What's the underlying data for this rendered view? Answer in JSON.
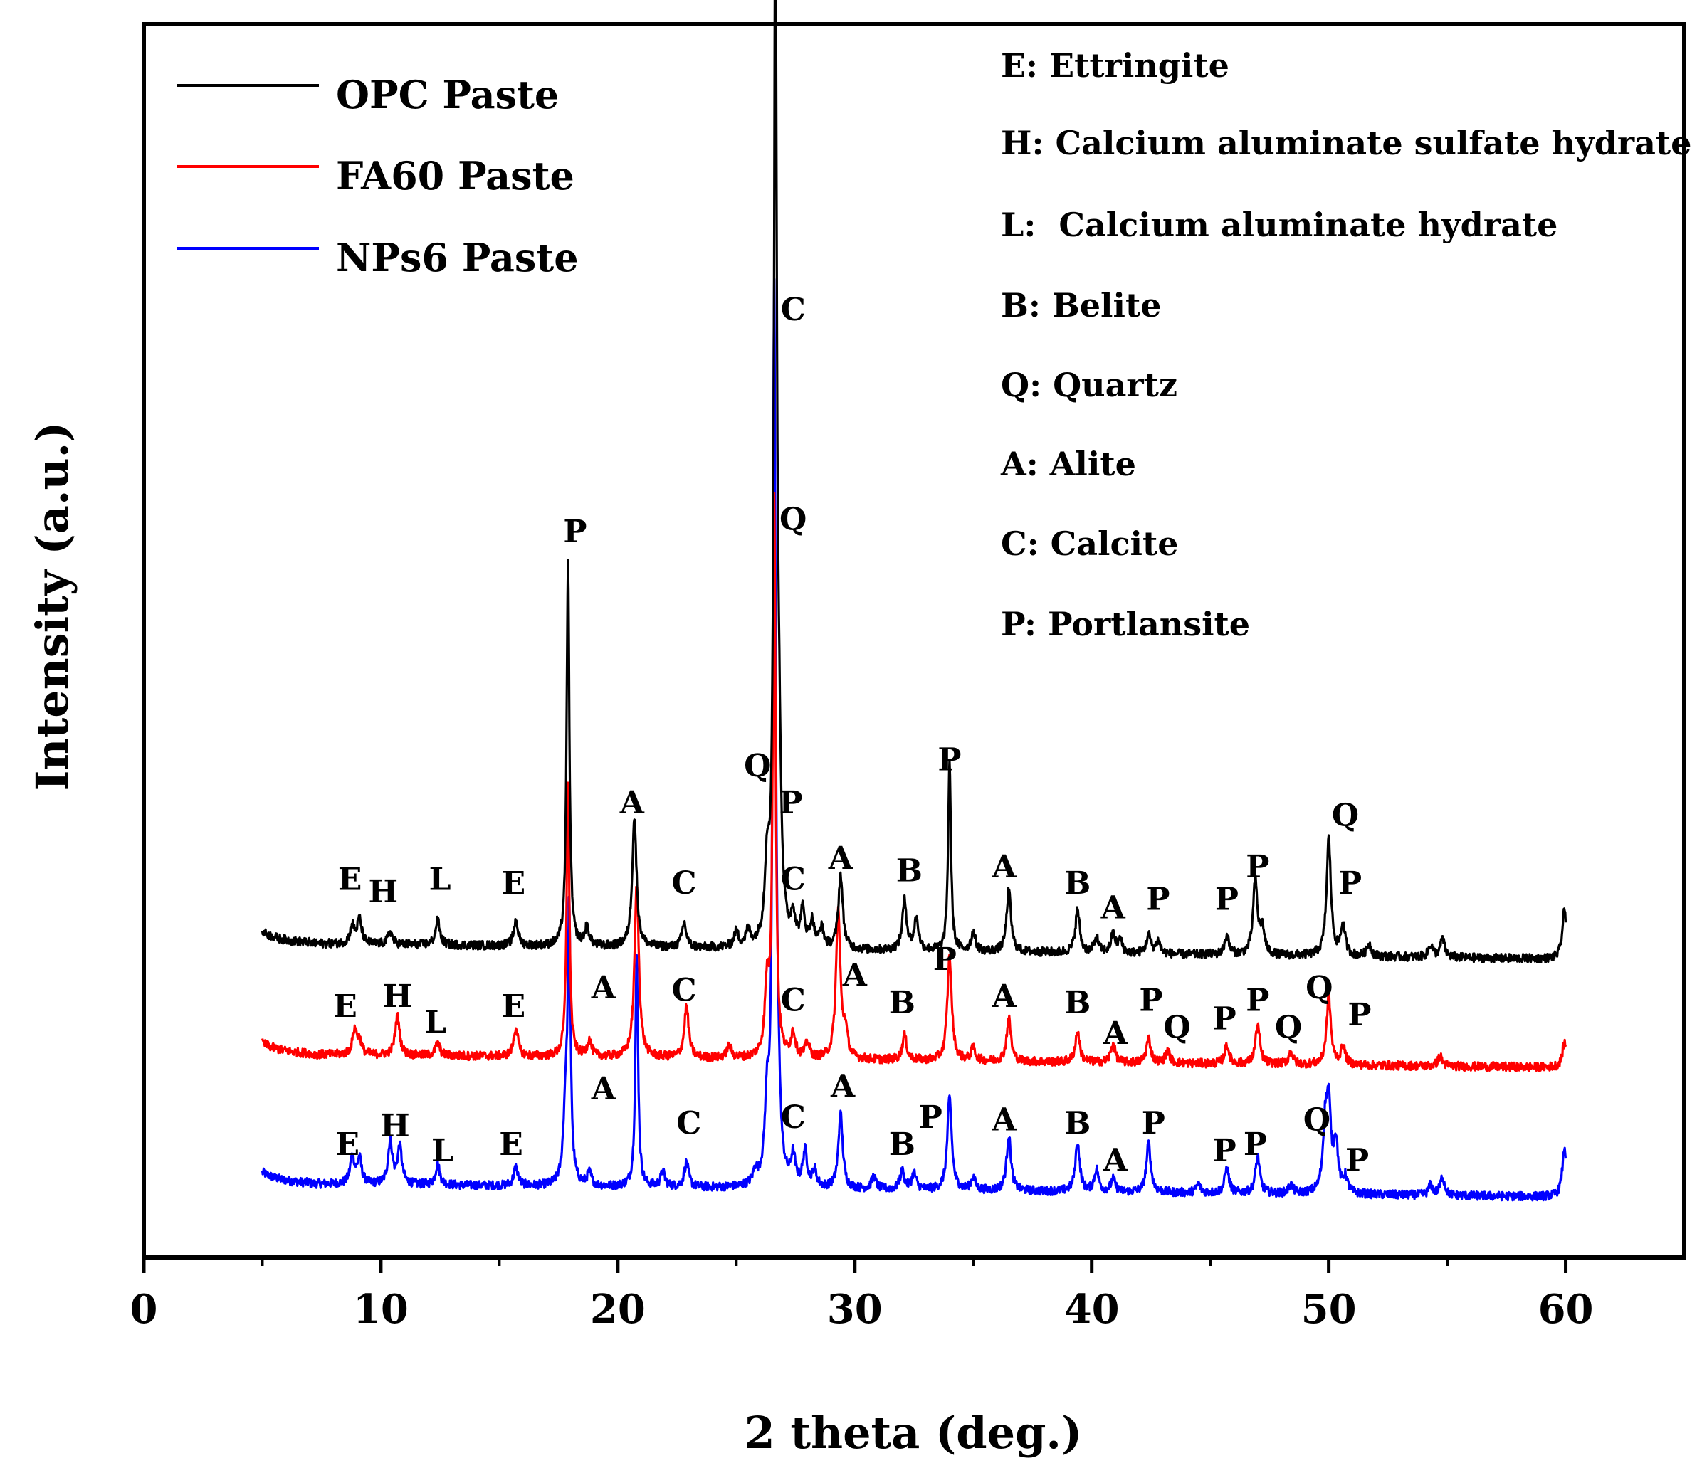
{
  "chart_data": {
    "type": "line",
    "title": "",
    "xlabel": "2 theta (deg.)",
    "ylabel": "Intensity (a.u.)",
    "xlim": [
      0,
      65
    ],
    "ylim": [
      0,
      100
    ],
    "yticks_shown": false,
    "x_ticks": [
      0,
      10,
      20,
      30,
      40,
      50,
      60
    ],
    "x_tick_labels": [
      "0",
      "10",
      "20",
      "30",
      "40",
      "50",
      "60"
    ],
    "legend_position": "top-left",
    "legend": [
      {
        "name": "OPC Paste",
        "color": "#000000"
      },
      {
        "name": "FA60 Paste",
        "color": "#ff0000"
      },
      {
        "name": "NPs6 Paste",
        "color": "#0000ff"
      }
    ],
    "phase_key": [
      "E: Ettringite",
      "H: Calcium aluminate sulfate hydrate",
      "L:  Calcium aluminate hydrate",
      "B: Belite",
      "Q: Quartz",
      "A: Alite",
      "C: Calcite",
      "P: Portlansite"
    ],
    "series": [
      {
        "name": "OPC Paste",
        "color": "#000000",
        "baseline": 25.5,
        "slope": -0.024,
        "noise": 0.35,
        "peaks": [
          [
            8.8,
            1.4
          ],
          [
            9.1,
            2
          ],
          [
            10.4,
            1
          ],
          [
            12.4,
            2
          ],
          [
            15.7,
            2
          ],
          [
            17.9,
            31
          ],
          [
            18.7,
            1.5
          ],
          [
            20.7,
            10.5
          ],
          [
            22.8,
            2
          ],
          [
            25.0,
            1.2
          ],
          [
            25.5,
            1.2
          ],
          [
            26.3,
            6
          ],
          [
            26.65,
            83
          ],
          [
            26.8,
            12
          ],
          [
            27.4,
            2.3
          ],
          [
            27.8,
            2.8
          ],
          [
            28.2,
            2
          ],
          [
            28.6,
            1.5
          ],
          [
            29.4,
            6
          ],
          [
            32.1,
            4
          ],
          [
            32.6,
            2.5
          ],
          [
            34.0,
            15.5
          ],
          [
            35.0,
            1.5
          ],
          [
            36.5,
            5
          ],
          [
            39.4,
            3.5
          ],
          [
            40.2,
            1.2
          ],
          [
            40.9,
            1.5
          ],
          [
            41.2,
            1
          ],
          [
            42.4,
            1.5
          ],
          [
            42.8,
            1
          ],
          [
            45.7,
            1.5
          ],
          [
            46.9,
            6
          ],
          [
            47.2,
            2
          ],
          [
            50.0,
            9.5
          ],
          [
            50.6,
            2.5
          ],
          [
            51.7,
            1
          ],
          [
            54.3,
            1
          ],
          [
            54.8,
            1.5
          ],
          [
            59.95,
            4
          ]
        ]
      },
      {
        "name": "FA60 Paste",
        "color": "#ff0000",
        "baseline": 16.5,
        "slope": -0.02,
        "noise": 0.35,
        "peaks": [
          [
            8.9,
            2
          ],
          [
            9.1,
            1
          ],
          [
            10.7,
            3.2
          ],
          [
            12.4,
            1
          ],
          [
            15.7,
            2.3
          ],
          [
            17.9,
            22
          ],
          [
            18.8,
            1.3
          ],
          [
            20.8,
            14
          ],
          [
            22.9,
            4.2
          ],
          [
            24.7,
            1
          ],
          [
            26.3,
            5.5
          ],
          [
            26.6,
            45
          ],
          [
            27.4,
            2
          ],
          [
            28.0,
            1.2
          ],
          [
            29.3,
            12
          ],
          [
            29.6,
            2
          ],
          [
            32.1,
            2
          ],
          [
            34.0,
            8.5
          ],
          [
            35.0,
            1
          ],
          [
            36.5,
            3.5
          ],
          [
            39.4,
            2.5
          ],
          [
            40.9,
            1.5
          ],
          [
            42.4,
            2
          ],
          [
            43.2,
            1
          ],
          [
            45.7,
            1.5
          ],
          [
            47.0,
            3.2
          ],
          [
            48.4,
            1
          ],
          [
            50.0,
            5.5
          ],
          [
            50.6,
            1.5
          ],
          [
            54.7,
            0.8
          ],
          [
            59.95,
            2
          ]
        ]
      },
      {
        "name": "NPs6 Paste",
        "color": "#0000ff",
        "baseline": 6,
        "slope": -0.02,
        "noise": 0.35,
        "peaks": [
          [
            8.8,
            2.2
          ],
          [
            9.1,
            2
          ],
          [
            10.4,
            3.5
          ],
          [
            10.8,
            3
          ],
          [
            12.4,
            1.7
          ],
          [
            15.7,
            1.5
          ],
          [
            17.8,
            6
          ],
          [
            17.95,
            21.5
          ],
          [
            18.8,
            1
          ],
          [
            20.8,
            18.5
          ],
          [
            21.9,
            1.2
          ],
          [
            22.9,
            2
          ],
          [
            25.8,
            1
          ],
          [
            26.3,
            6
          ],
          [
            26.6,
            71
          ],
          [
            26.75,
            6
          ],
          [
            27.4,
            2.3
          ],
          [
            27.9,
            2.8
          ],
          [
            28.3,
            1.3
          ],
          [
            29.4,
            6
          ],
          [
            30.8,
            1
          ],
          [
            32.0,
            1.5
          ],
          [
            32.5,
            1.3
          ],
          [
            34.0,
            7.5
          ],
          [
            35.0,
            1
          ],
          [
            36.5,
            4.5
          ],
          [
            39.4,
            4
          ],
          [
            40.2,
            1.8
          ],
          [
            40.9,
            1
          ],
          [
            42.4,
            4
          ],
          [
            44.5,
            0.7
          ],
          [
            45.7,
            2
          ],
          [
            47.0,
            3
          ],
          [
            48.4,
            0.7
          ],
          [
            49.85,
            5
          ],
          [
            50.0,
            6.5
          ],
          [
            50.3,
            4
          ],
          [
            50.7,
            1.2
          ],
          [
            54.3,
            0.8
          ],
          [
            54.8,
            1.5
          ],
          [
            59.95,
            4
          ]
        ]
      }
    ],
    "peak_labels": [
      {
        "text": "E",
        "x": 8.7,
        "y": 29.8
      },
      {
        "text": "H",
        "x": 10.1,
        "y": 28.8
      },
      {
        "text": "L",
        "x": 12.5,
        "y": 29.8
      },
      {
        "text": "E",
        "x": 15.6,
        "y": 29.5
      },
      {
        "text": "P",
        "x": 18.2,
        "y": 58.0
      },
      {
        "text": "A",
        "x": 20.6,
        "y": 36.0
      },
      {
        "text": "C",
        "x": 22.8,
        "y": 29.5
      },
      {
        "text": "Q",
        "x": 25.9,
        "y": 39.0
      },
      {
        "text": "C",
        "x": 27.4,
        "y": 76.0
      },
      {
        "text": "Q",
        "x": 27.4,
        "y": 59.0
      },
      {
        "text": "P",
        "x": 27.3,
        "y": 36.0
      },
      {
        "text": "C",
        "x": 27.4,
        "y": 29.8
      },
      {
        "text": "A",
        "x": 29.4,
        "y": 31.5
      },
      {
        "text": "B",
        "x": 32.3,
        "y": 30.5
      },
      {
        "text": "P",
        "x": 34.0,
        "y": 39.5
      },
      {
        "text": "A",
        "x": 36.3,
        "y": 30.8
      },
      {
        "text": "B",
        "x": 39.4,
        "y": 29.5
      },
      {
        "text": "A",
        "x": 40.9,
        "y": 27.5
      },
      {
        "text": "P",
        "x": 42.8,
        "y": 28.2
      },
      {
        "text": "P",
        "x": 45.7,
        "y": 28.2
      },
      {
        "text": "P",
        "x": 47.0,
        "y": 30.8
      },
      {
        "text": "Q",
        "x": 50.7,
        "y": 35.0
      },
      {
        "text": "P",
        "x": 50.9,
        "y": 29.5
      },
      {
        "text": "E",
        "x": 8.5,
        "y": 19.5
      },
      {
        "text": "H",
        "x": 10.7,
        "y": 20.3
      },
      {
        "text": "L",
        "x": 12.3,
        "y": 18.2
      },
      {
        "text": "E",
        "x": 15.6,
        "y": 19.5
      },
      {
        "text": "A",
        "x": 19.4,
        "y": 21.0
      },
      {
        "text": "C",
        "x": 22.8,
        "y": 20.8
      },
      {
        "text": "A",
        "x": 30.0,
        "y": 22.0
      },
      {
        "text": "C",
        "x": 27.4,
        "y": 20.0
      },
      {
        "text": "B",
        "x": 32.0,
        "y": 19.8
      },
      {
        "text": "P",
        "x": 33.8,
        "y": 23.3
      },
      {
        "text": "A",
        "x": 36.3,
        "y": 20.3
      },
      {
        "text": "B",
        "x": 39.4,
        "y": 19.8
      },
      {
        "text": "A",
        "x": 41.0,
        "y": 17.3
      },
      {
        "text": "P",
        "x": 42.5,
        "y": 20.0
      },
      {
        "text": "Q",
        "x": 43.6,
        "y": 17.8
      },
      {
        "text": "P",
        "x": 45.6,
        "y": 18.5
      },
      {
        "text": "P",
        "x": 47.0,
        "y": 20.0
      },
      {
        "text": "Q",
        "x": 48.3,
        "y": 17.8
      },
      {
        "text": "Q",
        "x": 49.6,
        "y": 21.0
      },
      {
        "text": "P",
        "x": 51.3,
        "y": 18.8
      },
      {
        "text": "E",
        "x": 8.6,
        "y": 8.3
      },
      {
        "text": "H",
        "x": 10.6,
        "y": 9.8
      },
      {
        "text": "L",
        "x": 12.6,
        "y": 7.8
      },
      {
        "text": "E",
        "x": 15.5,
        "y": 8.3
      },
      {
        "text": "A",
        "x": 19.4,
        "y": 12.8
      },
      {
        "text": "C",
        "x": 23.0,
        "y": 10.0
      },
      {
        "text": "C",
        "x": 27.4,
        "y": 10.5
      },
      {
        "text": "A",
        "x": 29.5,
        "y": 13.0
      },
      {
        "text": "B",
        "x": 32.0,
        "y": 8.3
      },
      {
        "text": "P",
        "x": 33.2,
        "y": 10.5
      },
      {
        "text": "A",
        "x": 36.3,
        "y": 10.3
      },
      {
        "text": "B",
        "x": 39.4,
        "y": 10.0
      },
      {
        "text": "A",
        "x": 41.0,
        "y": 7.0
      },
      {
        "text": "P",
        "x": 42.6,
        "y": 10.0
      },
      {
        "text": "P",
        "x": 45.6,
        "y": 7.8
      },
      {
        "text": "P",
        "x": 46.9,
        "y": 8.3
      },
      {
        "text": "Q",
        "x": 49.5,
        "y": 10.3
      },
      {
        "text": "P",
        "x": 51.2,
        "y": 7.0
      }
    ]
  }
}
